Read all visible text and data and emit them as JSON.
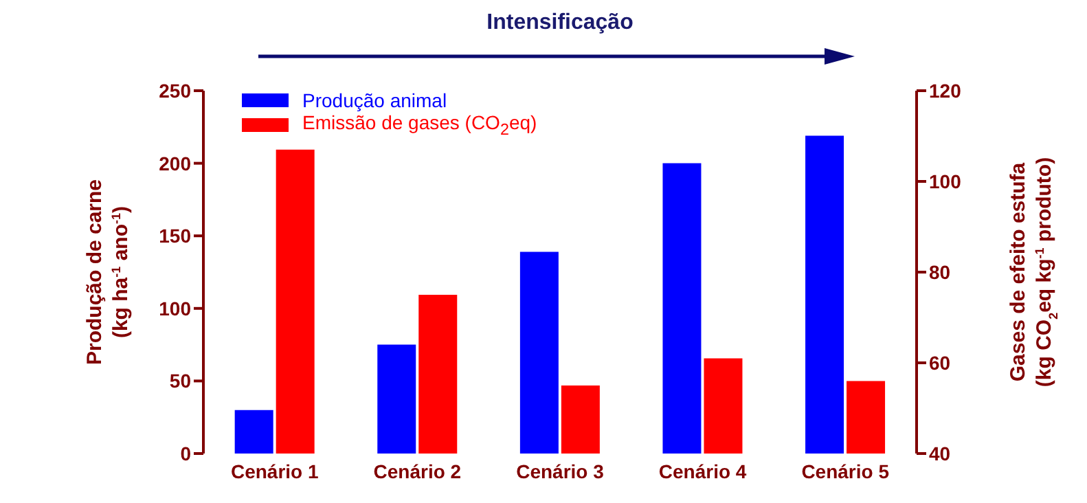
{
  "chart_data": {
    "type": "bar",
    "title": "Intensificação",
    "categories": [
      "Cenário 1",
      "Cenário 2",
      "Cenário 3",
      "Cenário 4",
      "Cenário 5"
    ],
    "series": [
      {
        "name": "Produção animal",
        "color": "#0000ff",
        "values": [
          30,
          75,
          139,
          200,
          219
        ]
      },
      {
        "name": "Emissão de gases (CO$_{2}$eq)",
        "color": "#ff0000",
        "axis": "y2",
        "values": [
          107,
          75,
          55,
          61,
          56
        ]
      }
    ],
    "ylabel": "Produção de carne\n(kg ha$^{-1}$ ano$^{-1}$)",
    "y2label": "Gases de efeito estufa\n(kg CO$_{2}$eq kg$^{-1}$ produto)",
    "ylim": [
      0,
      250
    ],
    "yticks": [
      0,
      50,
      100,
      150,
      200,
      250
    ],
    "y2lim": [
      40,
      120
    ],
    "y2ticks": [
      40,
      60,
      80,
      100,
      120
    ],
    "grid": false,
    "legend": "top left"
  }
}
